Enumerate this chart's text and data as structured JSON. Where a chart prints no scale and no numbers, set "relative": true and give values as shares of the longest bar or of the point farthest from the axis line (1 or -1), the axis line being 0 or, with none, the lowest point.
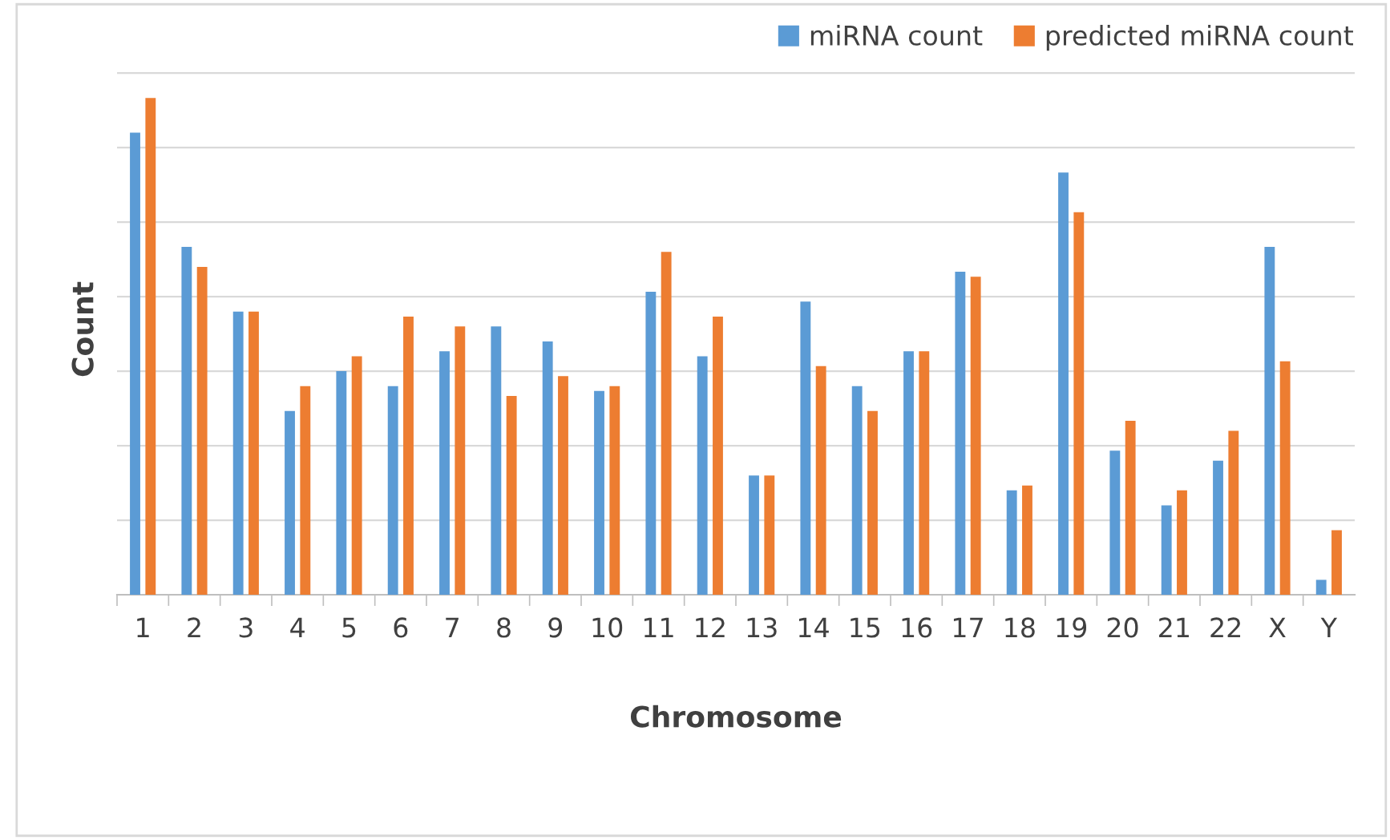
{
  "chart_data": {
    "type": "bar",
    "relative": true,
    "xlabel": "Chromosome",
    "ylabel": "Count",
    "grid": "y",
    "legend": "top right",
    "categories": [
      "1",
      "2",
      "3",
      "4",
      "5",
      "6",
      "7",
      "8",
      "9",
      "10",
      "11",
      "12",
      "13",
      "14",
      "15",
      "16",
      "17",
      "18",
      "19",
      "20",
      "21",
      "22",
      "X",
      "Y"
    ],
    "series": [
      {
        "name": "miRNA count",
        "color": "#5b9bd5",
        "values": [
          0.93,
          0.7,
          0.57,
          0.37,
          0.45,
          0.42,
          0.49,
          0.54,
          0.51,
          0.41,
          0.61,
          0.48,
          0.24,
          0.59,
          0.42,
          0.49,
          0.65,
          0.21,
          0.85,
          0.29,
          0.18,
          0.27,
          0.7,
          0.03
        ]
      },
      {
        "name": "predicted miRNA count",
        "color": "#ed7d31",
        "values": [
          1.0,
          0.66,
          0.57,
          0.42,
          0.48,
          0.56,
          0.54,
          0.4,
          0.44,
          0.42,
          0.69,
          0.56,
          0.24,
          0.46,
          0.37,
          0.49,
          0.64,
          0.22,
          0.77,
          0.35,
          0.21,
          0.33,
          0.47,
          0.13
        ]
      }
    ]
  }
}
